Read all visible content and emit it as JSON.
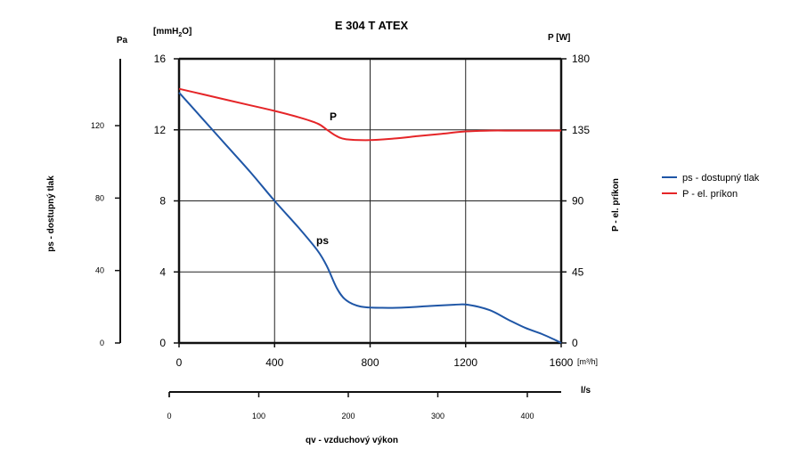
{
  "chart_data": {
    "type": "line",
    "title": "E 304 T ATEX",
    "x": {
      "unit": "[m³/h]",
      "range": [
        0,
        1600
      ],
      "ticks": [
        0,
        400,
        800,
        1200,
        1600
      ]
    },
    "x2": {
      "unit": "l/s",
      "ticks": [
        0,
        100,
        200,
        300,
        400
      ]
    },
    "xlabel": "qv - vzduchový výkon",
    "y_mmH2O": {
      "unit": "[mmH2O]",
      "range": [
        0,
        16
      ],
      "ticks": [
        0,
        4,
        8,
        12,
        16
      ]
    },
    "y_pa": {
      "unit": "Pa",
      "ticks": [
        0,
        40,
        80,
        120
      ]
    },
    "ylabel": "ps - dostupný tlak",
    "y_right": {
      "unit": "P [W]",
      "range": [
        0,
        180
      ],
      "ticks": [
        0,
        45,
        90,
        135,
        180
      ]
    },
    "ylabel_right": "P - el. príkon",
    "grid": true,
    "legend_position": "right",
    "series": [
      {
        "name": "ps - dostupný tlak",
        "label": "ps",
        "color": "#1f56a6",
        "axis": "left",
        "points": [
          [
            0,
            14.1
          ],
          [
            100,
            12.6
          ],
          [
            200,
            11.1
          ],
          [
            300,
            9.6
          ],
          [
            400,
            8.0
          ],
          [
            500,
            6.5
          ],
          [
            580,
            5.2
          ],
          [
            620,
            4.3
          ],
          [
            660,
            3.1
          ],
          [
            700,
            2.4
          ],
          [
            760,
            2.05
          ],
          [
            850,
            1.98
          ],
          [
            950,
            2.0
          ],
          [
            1050,
            2.08
          ],
          [
            1150,
            2.15
          ],
          [
            1210,
            2.15
          ],
          [
            1300,
            1.85
          ],
          [
            1380,
            1.3
          ],
          [
            1450,
            0.85
          ],
          [
            1520,
            0.5
          ],
          [
            1570,
            0.2
          ],
          [
            1600,
            0.0
          ]
        ]
      },
      {
        "name": "P - el. príkon",
        "label": "P",
        "color": "#e52528",
        "axis": "right",
        "points": [
          [
            0,
            161
          ],
          [
            100,
            157.5
          ],
          [
            200,
            154
          ],
          [
            300,
            150.5
          ],
          [
            400,
            147
          ],
          [
            500,
            143
          ],
          [
            580,
            139
          ],
          [
            620,
            135
          ],
          [
            660,
            131
          ],
          [
            700,
            129
          ],
          [
            800,
            128.5
          ],
          [
            900,
            129.5
          ],
          [
            1000,
            131
          ],
          [
            1100,
            132.5
          ],
          [
            1200,
            134
          ],
          [
            1300,
            134.5
          ],
          [
            1400,
            134.5
          ],
          [
            1500,
            134.5
          ],
          [
            1600,
            134.5
          ]
        ]
      }
    ]
  }
}
